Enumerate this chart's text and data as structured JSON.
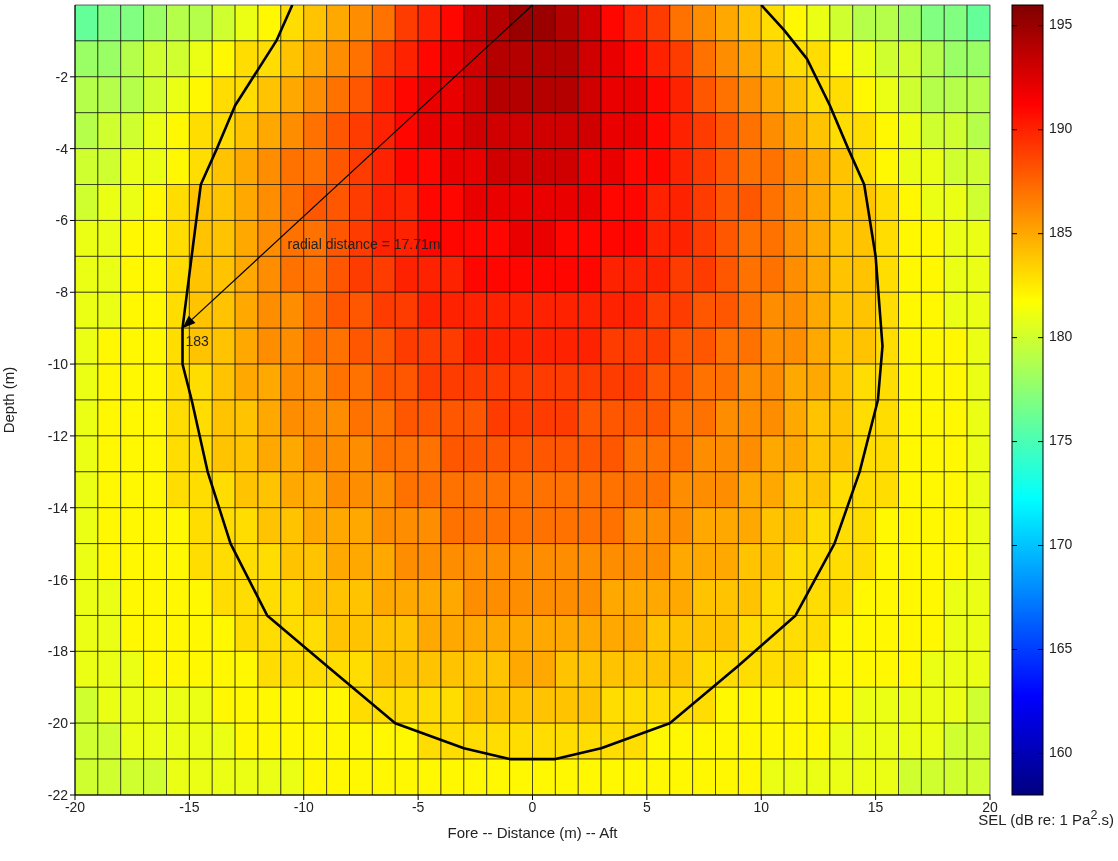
{
  "chart_data": {
    "type": "heatmap",
    "xlabel": "Fore -- Distance (m) -- Aft",
    "ylabel": "Depth (m)",
    "clabel": "SEL (dB re: 1  Pa$^{2}$.s)",
    "x": [
      -19.5,
      -18.5,
      -17.5,
      -16.5,
      -15.5,
      -14.5,
      -13.5,
      -12.5,
      -11.5,
      -10.5,
      -9.5,
      -8.5,
      -7.5,
      -6.5,
      -5.5,
      -4.5,
      -3.5,
      -2.5,
      -1.5,
      -0.5,
      0.5,
      1.5,
      2.5,
      3.5,
      4.5,
      5.5,
      6.5,
      7.5,
      8.5,
      9.5,
      10.5,
      11.5,
      12.5,
      13.5,
      14.5,
      15.5,
      16.5,
      17.5,
      18.5,
      19.5
    ],
    "y": [
      -0.5,
      -1.5,
      -2.5,
      -3.5,
      -4.5,
      -5.5,
      -6.5,
      -7.5,
      -8.5,
      -9.5,
      -10.5,
      -11.5,
      -12.5,
      -13.5,
      -14.5,
      -15.5,
      -16.5,
      -17.5,
      -18.5,
      -19.5,
      -20.5,
      -21.5
    ],
    "xlim": [
      -20,
      20
    ],
    "xticks": [
      -20,
      -15,
      -10,
      -5,
      0,
      5,
      10,
      15,
      20
    ],
    "ylim": [
      -22,
      0
    ],
    "yticks": [
      -22,
      -20,
      -18,
      -16,
      -14,
      -12,
      -10,
      -8,
      -6,
      -4,
      -2
    ],
    "clim": [
      158,
      196
    ],
    "cticks": [
      160,
      165,
      170,
      175,
      180,
      185,
      190,
      195
    ],
    "cells": [
      [
        176,
        177,
        177,
        178,
        179,
        179,
        180,
        181,
        182,
        183,
        184,
        185,
        186,
        187,
        189,
        190,
        191,
        193,
        194,
        195,
        195,
        194,
        193,
        191,
        190,
        189,
        187,
        186,
        185,
        184,
        183,
        182,
        181,
        180,
        179,
        179,
        178,
        177,
        177,
        176
      ],
      [
        178,
        178,
        179,
        180,
        180,
        181,
        182,
        183,
        183,
        184,
        185,
        186,
        187,
        189,
        190,
        191,
        192,
        193,
        194,
        194,
        194,
        194,
        193,
        192,
        191,
        190,
        189,
        187,
        186,
        185,
        184,
        183,
        183,
        182,
        181,
        180,
        180,
        179,
        178,
        178
      ],
      [
        179,
        179,
        179,
        180,
        181,
        182,
        183,
        183,
        184,
        185,
        186,
        187,
        188,
        190,
        191,
        192,
        192,
        193,
        194,
        194,
        194,
        194,
        193,
        192,
        192,
        191,
        190,
        188,
        187,
        186,
        185,
        184,
        183,
        183,
        182,
        181,
        180,
        179,
        179,
        179
      ],
      [
        179,
        180,
        180,
        181,
        182,
        183,
        183,
        184,
        185,
        186,
        187,
        188,
        189,
        190,
        191,
        192,
        192,
        193,
        193,
        193,
        193,
        193,
        193,
        192,
        192,
        191,
        190,
        189,
        188,
        187,
        186,
        185,
        184,
        183,
        183,
        182,
        181,
        180,
        180,
        179
      ],
      [
        180,
        180,
        181,
        181,
        182,
        183,
        184,
        185,
        186,
        187,
        187,
        188,
        189,
        190,
        191,
        191,
        192,
        192,
        193,
        193,
        193,
        193,
        192,
        192,
        191,
        191,
        190,
        189,
        188,
        187,
        187,
        186,
        185,
        184,
        183,
        182,
        181,
        181,
        180,
        180
      ],
      [
        180,
        181,
        181,
        182,
        183,
        184,
        184,
        185,
        186,
        187,
        188,
        188,
        189,
        190,
        190,
        191,
        191,
        192,
        192,
        192,
        192,
        192,
        192,
        191,
        191,
        190,
        190,
        189,
        188,
        188,
        187,
        186,
        185,
        184,
        184,
        183,
        182,
        181,
        181,
        180
      ],
      [
        181,
        181,
        182,
        182,
        183,
        184,
        184,
        185,
        186,
        187,
        187,
        188,
        189,
        190,
        190,
        191,
        191,
        191,
        191,
        192,
        192,
        191,
        191,
        191,
        191,
        190,
        190,
        189,
        188,
        187,
        187,
        186,
        185,
        184,
        184,
        183,
        182,
        182,
        181,
        181
      ],
      [
        181,
        181,
        182,
        182,
        183,
        184,
        184,
        185,
        186,
        187,
        187,
        188,
        189,
        189,
        190,
        190,
        190,
        191,
        191,
        191,
        191,
        191,
        191,
        190,
        190,
        190,
        189,
        189,
        188,
        187,
        187,
        186,
        185,
        184,
        184,
        183,
        182,
        182,
        181,
        181
      ],
      [
        181,
        181,
        182,
        182,
        183,
        184,
        184,
        185,
        186,
        186,
        187,
        188,
        188,
        189,
        189,
        190,
        190,
        190,
        190,
        190,
        190,
        190,
        190,
        190,
        190,
        189,
        189,
        188,
        188,
        187,
        186,
        186,
        185,
        184,
        184,
        183,
        182,
        182,
        181,
        181
      ],
      [
        181,
        182,
        182,
        182,
        183,
        184,
        184,
        185,
        186,
        186,
        187,
        187,
        188,
        188,
        189,
        189,
        189,
        190,
        190,
        190,
        190,
        190,
        190,
        189,
        189,
        189,
        188,
        188,
        187,
        187,
        186,
        186,
        185,
        184,
        184,
        183,
        182,
        182,
        182,
        181
      ],
      [
        181,
        182,
        182,
        182,
        183,
        183,
        184,
        185,
        185,
        186,
        186,
        187,
        187,
        188,
        188,
        189,
        189,
        189,
        189,
        189,
        189,
        189,
        189,
        189,
        189,
        188,
        188,
        187,
        187,
        186,
        186,
        185,
        185,
        184,
        183,
        183,
        182,
        182,
        182,
        181
      ],
      [
        181,
        182,
        182,
        182,
        183,
        183,
        184,
        184,
        185,
        186,
        186,
        186,
        187,
        187,
        188,
        188,
        188,
        188,
        189,
        189,
        189,
        189,
        188,
        188,
        188,
        188,
        187,
        187,
        186,
        186,
        186,
        185,
        184,
        184,
        183,
        183,
        182,
        182,
        182,
        181
      ],
      [
        181,
        182,
        182,
        182,
        183,
        183,
        184,
        184,
        185,
        185,
        186,
        186,
        186,
        187,
        187,
        187,
        188,
        188,
        188,
        188,
        188,
        188,
        188,
        188,
        187,
        187,
        187,
        186,
        186,
        186,
        185,
        185,
        184,
        184,
        183,
        183,
        182,
        182,
        182,
        181
      ],
      [
        181,
        182,
        182,
        182,
        183,
        183,
        183,
        184,
        184,
        185,
        185,
        186,
        186,
        186,
        187,
        187,
        187,
        187,
        187,
        187,
        187,
        187,
        187,
        187,
        187,
        187,
        186,
        186,
        186,
        185,
        185,
        184,
        184,
        183,
        183,
        183,
        182,
        182,
        182,
        181
      ],
      [
        181,
        182,
        182,
        182,
        182,
        183,
        183,
        183,
        184,
        184,
        185,
        185,
        185,
        186,
        186,
        186,
        187,
        187,
        187,
        187,
        187,
        187,
        187,
        187,
        186,
        186,
        186,
        185,
        185,
        185,
        184,
        184,
        183,
        183,
        183,
        182,
        182,
        182,
        182,
        181
      ],
      [
        181,
        182,
        182,
        182,
        182,
        183,
        183,
        183,
        183,
        184,
        184,
        185,
        185,
        185,
        186,
        186,
        186,
        186,
        186,
        186,
        186,
        186,
        186,
        186,
        186,
        186,
        185,
        185,
        185,
        184,
        184,
        183,
        183,
        183,
        183,
        182,
        182,
        182,
        182,
        181
      ],
      [
        181,
        181,
        182,
        182,
        182,
        182,
        183,
        183,
        183,
        183,
        184,
        184,
        184,
        185,
        185,
        185,
        185,
        186,
        186,
        186,
        186,
        186,
        186,
        185,
        185,
        185,
        185,
        184,
        184,
        184,
        183,
        183,
        183,
        183,
        182,
        182,
        182,
        182,
        181,
        181
      ],
      [
        181,
        181,
        182,
        182,
        182,
        182,
        182,
        183,
        183,
        183,
        183,
        184,
        184,
        184,
        184,
        185,
        185,
        185,
        185,
        185,
        185,
        185,
        185,
        185,
        185,
        184,
        184,
        184,
        184,
        183,
        183,
        183,
        183,
        182,
        182,
        182,
        182,
        182,
        181,
        181
      ],
      [
        181,
        181,
        181,
        182,
        182,
        182,
        182,
        182,
        183,
        183,
        183,
        183,
        183,
        184,
        184,
        184,
        184,
        184,
        184,
        185,
        185,
        184,
        184,
        184,
        184,
        184,
        184,
        183,
        183,
        183,
        183,
        183,
        182,
        182,
        182,
        182,
        182,
        181,
        181,
        181
      ],
      [
        180,
        181,
        181,
        181,
        181,
        181,
        182,
        182,
        182,
        182,
        182,
        182,
        183,
        183,
        183,
        183,
        183,
        184,
        184,
        184,
        184,
        184,
        184,
        183,
        183,
        183,
        183,
        183,
        182,
        182,
        182,
        182,
        182,
        182,
        181,
        181,
        181,
        181,
        181,
        180
      ],
      [
        180,
        180,
        181,
        181,
        181,
        181,
        181,
        182,
        182,
        182,
        182,
        182,
        182,
        182,
        182,
        183,
        183,
        183,
        183,
        183,
        183,
        183,
        183,
        183,
        183,
        182,
        182,
        182,
        182,
        182,
        182,
        182,
        182,
        181,
        181,
        181,
        181,
        181,
        180,
        180
      ],
      [
        180,
        180,
        180,
        180,
        181,
        181,
        181,
        181,
        181,
        181,
        182,
        182,
        182,
        182,
        182,
        182,
        182,
        182,
        182,
        182,
        182,
        182,
        182,
        182,
        182,
        182,
        182,
        182,
        182,
        182,
        181,
        181,
        181,
        181,
        181,
        181,
        180,
        180,
        180,
        180
      ]
    ],
    "series": [
      {
        "type": "line",
        "color": "#000000",
        "x": [
          -10.5,
          -11.2,
          -12.2,
          -13,
          -13.8,
          -14.5,
          -14.9,
          -15.3,
          -15.3,
          -14.9,
          -14.2,
          -13.2,
          -11.6,
          -9,
          -6,
          -3,
          -1,
          1,
          3,
          6,
          9,
          11.5,
          13.2,
          14.3,
          15.1,
          15.3,
          15,
          14.5,
          13.8,
          13,
          12,
          11,
          10
        ],
        "values": [
          0,
          -1,
          -2,
          -2.8,
          -4,
          -5,
          -7,
          -9,
          -10,
          -11,
          -13,
          -15,
          -17,
          -18.4,
          -20,
          -20.7,
          -21,
          -21,
          -20.7,
          -20,
          -18.4,
          -17,
          -15,
          -13,
          -11,
          -9.5,
          -7,
          -5,
          -4,
          -2.8,
          -1.5,
          -0.7,
          0
        ]
      }
    ],
    "annotations": [
      "radial distance = 17.71m",
      {
        "text": "183",
        "x": -15.3,
        "y": -9
      }
    ]
  }
}
